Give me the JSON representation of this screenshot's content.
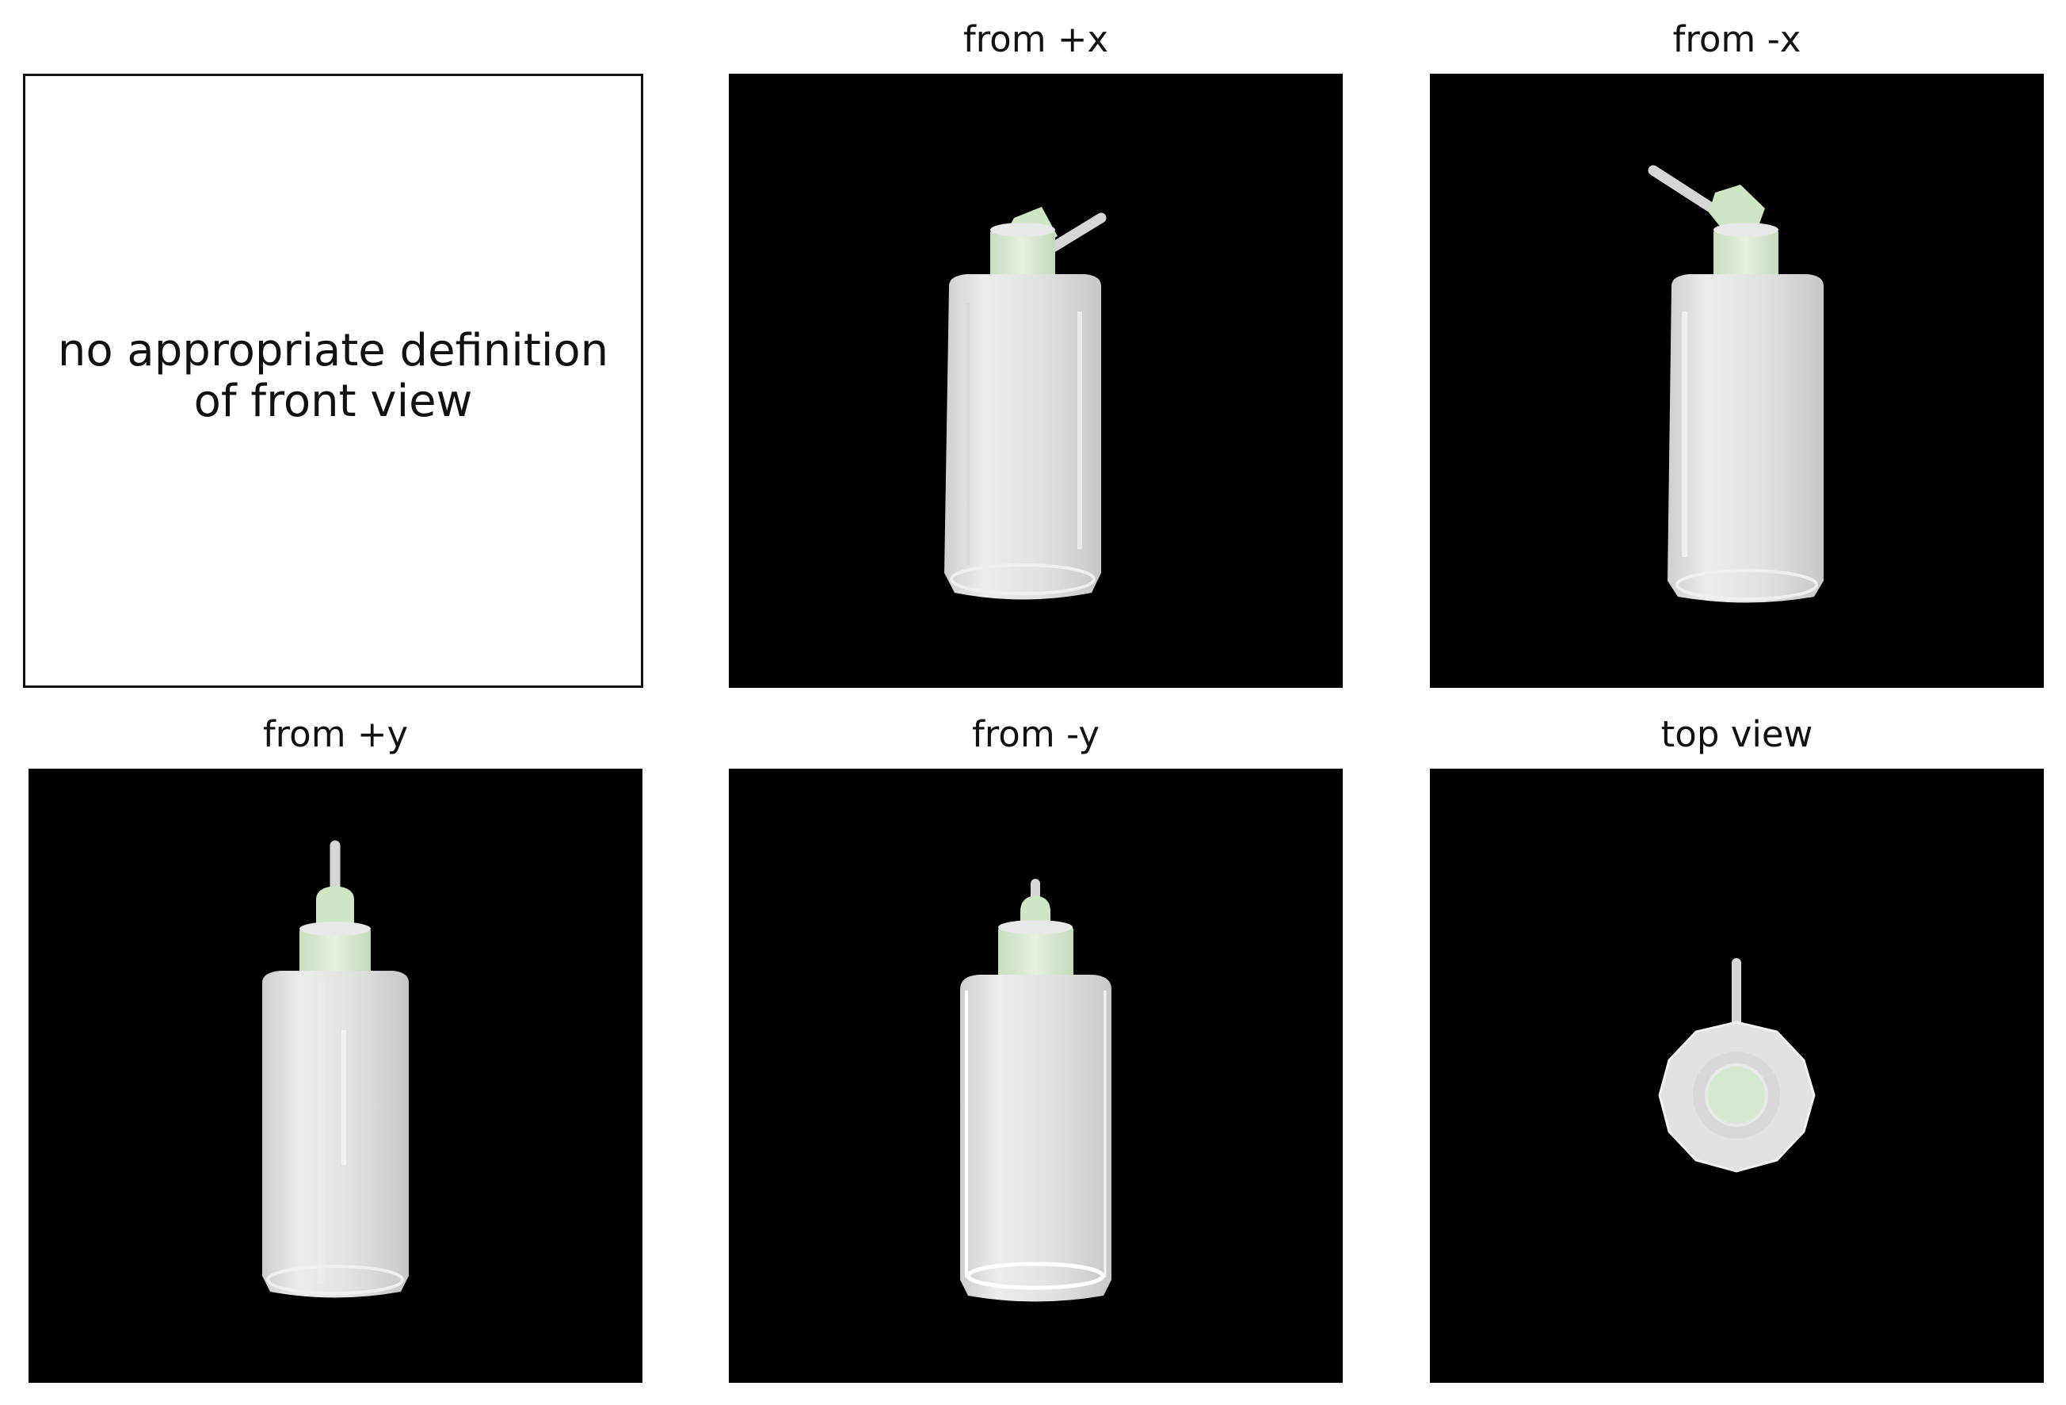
{
  "panels": {
    "front": {
      "message": "no appropriate definition\nof front view"
    },
    "pos_x": {
      "title": "from +x"
    },
    "neg_x": {
      "title": "from -x"
    },
    "pos_y": {
      "title": "from +y"
    },
    "neg_y": {
      "title": "from -y"
    },
    "top": {
      "title": "top view"
    }
  },
  "colors": {
    "background": "#000000",
    "bottle_body": "#e4e4e4",
    "nozzle_green": "#cfe6c4",
    "tube": "#d8d8d8"
  }
}
